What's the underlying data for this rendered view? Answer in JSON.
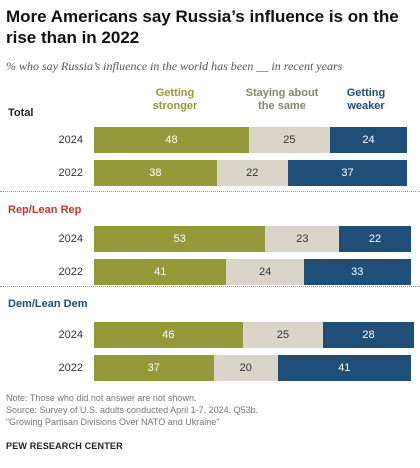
{
  "title": "More Americans say Russia’s influence is on the rise than in 2022",
  "subtitle": "% who say Russia’s influence in the world has been __ in recent years",
  "legend": [
    {
      "label": "Getting stronger",
      "color": "#949A3A"
    },
    {
      "label": "Staying about the same",
      "color": "#D9D6C9"
    },
    {
      "label": "Getting weaker",
      "color": "#1F4E79"
    }
  ],
  "chart_data": {
    "type": "bar",
    "stacked": true,
    "orientation": "horizontal",
    "series_names": [
      "Getting stronger",
      "Staying about the same",
      "Getting weaker"
    ],
    "colors": [
      "#949A3A",
      "#D9D6C9",
      "#1F4E79"
    ],
    "groups": [
      {
        "label": "Total",
        "label_color": "#222222",
        "rows": [
          {
            "year": "2024",
            "values": [
              48,
              25,
              24
            ]
          },
          {
            "year": "2022",
            "values": [
              38,
              22,
              37
            ]
          }
        ]
      },
      {
        "label": "Rep/Lean Rep",
        "label_color": "#C0392B",
        "rows": [
          {
            "year": "2024",
            "values": [
              53,
              23,
              22
            ]
          },
          {
            "year": "2022",
            "values": [
              41,
              24,
              33
            ]
          }
        ]
      },
      {
        "label": "Dem/Lean Dem",
        "label_color": "#1F4E79",
        "rows": [
          {
            "year": "2024",
            "values": [
              46,
              25,
              28
            ]
          },
          {
            "year": "2022",
            "values": [
              37,
              20,
              41
            ]
          }
        ]
      }
    ]
  },
  "notes": [
    "Note: Those who did not answer are not shown.",
    "Source: Survey of U.S. adults conducted April 1-7, 2024. Q53b.",
    "“Growing Partisan Divisions Over NATO and Ukraine”"
  ],
  "brand": "PEW RESEARCH CENTER"
}
